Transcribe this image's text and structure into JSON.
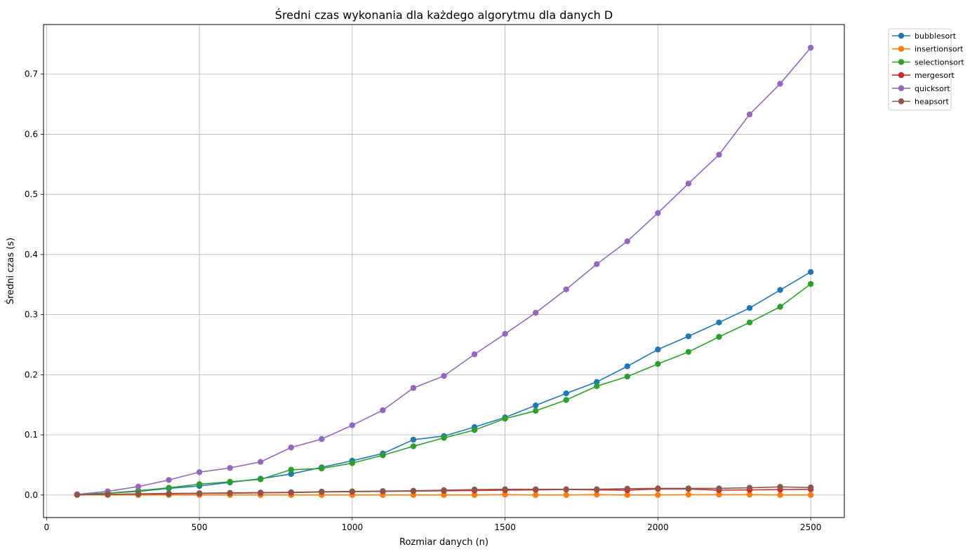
{
  "chart_data": {
    "type": "line",
    "title": "Średni czas wykonania dla każdego algorytmu dla danych D",
    "xlabel": "Rozmiar danych (n)",
    "ylabel": "Średni czas (s)",
    "xlim": [
      -10,
      2610
    ],
    "ylim": [
      -0.0375,
      0.7825
    ],
    "xticks": [
      0,
      500,
      1000,
      1500,
      2000,
      2500
    ],
    "yticks": [
      0.0,
      0.1,
      0.2,
      0.3,
      0.4,
      0.5,
      0.6,
      0.7
    ],
    "xtick_labels": [
      "0",
      "500",
      "1000",
      "1500",
      "2000",
      "2500"
    ],
    "ytick_labels": [
      "0.0",
      "0.1",
      "0.2",
      "0.3",
      "0.4",
      "0.5",
      "0.6",
      "0.7"
    ],
    "grid": true,
    "legend_position": "outside-top-right",
    "x": [
      100,
      200,
      300,
      400,
      500,
      600,
      700,
      800,
      900,
      1000,
      1100,
      1200,
      1300,
      1400,
      1500,
      1600,
      1700,
      1800,
      1900,
      2000,
      2100,
      2200,
      2300,
      2400,
      2500
    ],
    "series": [
      {
        "name": "bubblesort",
        "color": "#1f77b4",
        "values": [
          0.001,
          0.003,
          0.006,
          0.011,
          0.015,
          0.021,
          0.027,
          0.035,
          0.046,
          0.057,
          0.069,
          0.092,
          0.098,
          0.113,
          0.129,
          0.149,
          0.169,
          0.188,
          0.214,
          0.242,
          0.264,
          0.287,
          0.311,
          0.341,
          0.371
        ]
      },
      {
        "name": "insertionsort",
        "color": "#ff7f0e",
        "values": [
          0.0,
          0.0,
          0.0,
          0.0,
          0.0,
          0.0,
          0.0,
          0.0,
          0.0,
          0.0,
          0.0,
          0.0,
          0.0,
          0.0,
          0.0005,
          0.0,
          0.0,
          0.0005,
          0.0,
          0.0,
          0.0005,
          0.0005,
          0.0005,
          0.0,
          0.0
        ]
      },
      {
        "name": "selectionsort",
        "color": "#2ca02c",
        "values": [
          0.001,
          0.003,
          0.007,
          0.012,
          0.018,
          0.022,
          0.026,
          0.042,
          0.044,
          0.053,
          0.066,
          0.081,
          0.095,
          0.108,
          0.127,
          0.14,
          0.158,
          0.181,
          0.197,
          0.218,
          0.238,
          0.263,
          0.287,
          0.313,
          0.351
        ]
      },
      {
        "name": "mergesort",
        "color": "#d62728",
        "values": [
          0.0005,
          0.001,
          0.0015,
          0.002,
          0.0025,
          0.003,
          0.0035,
          0.004,
          0.005,
          0.0055,
          0.006,
          0.0065,
          0.007,
          0.0075,
          0.008,
          0.0085,
          0.009,
          0.0085,
          0.008,
          0.01,
          0.01,
          0.008,
          0.0085,
          0.009,
          0.0095
        ]
      },
      {
        "name": "quicksort",
        "color": "#9467bd",
        "values": [
          0.001,
          0.006,
          0.014,
          0.025,
          0.038,
          0.045,
          0.055,
          0.079,
          0.093,
          0.116,
          0.141,
          0.178,
          0.198,
          0.234,
          0.268,
          0.303,
          0.342,
          0.384,
          0.422,
          0.469,
          0.518,
          0.566,
          0.633,
          0.684,
          0.744
        ]
      },
      {
        "name": "heapsort",
        "color": "#8c564b",
        "values": [
          0.0005,
          0.001,
          0.002,
          0.0025,
          0.003,
          0.0035,
          0.004,
          0.0045,
          0.0055,
          0.006,
          0.0065,
          0.007,
          0.008,
          0.009,
          0.0095,
          0.0095,
          0.0095,
          0.0095,
          0.0105,
          0.011,
          0.011,
          0.011,
          0.012,
          0.0135,
          0.0125
        ]
      }
    ]
  }
}
